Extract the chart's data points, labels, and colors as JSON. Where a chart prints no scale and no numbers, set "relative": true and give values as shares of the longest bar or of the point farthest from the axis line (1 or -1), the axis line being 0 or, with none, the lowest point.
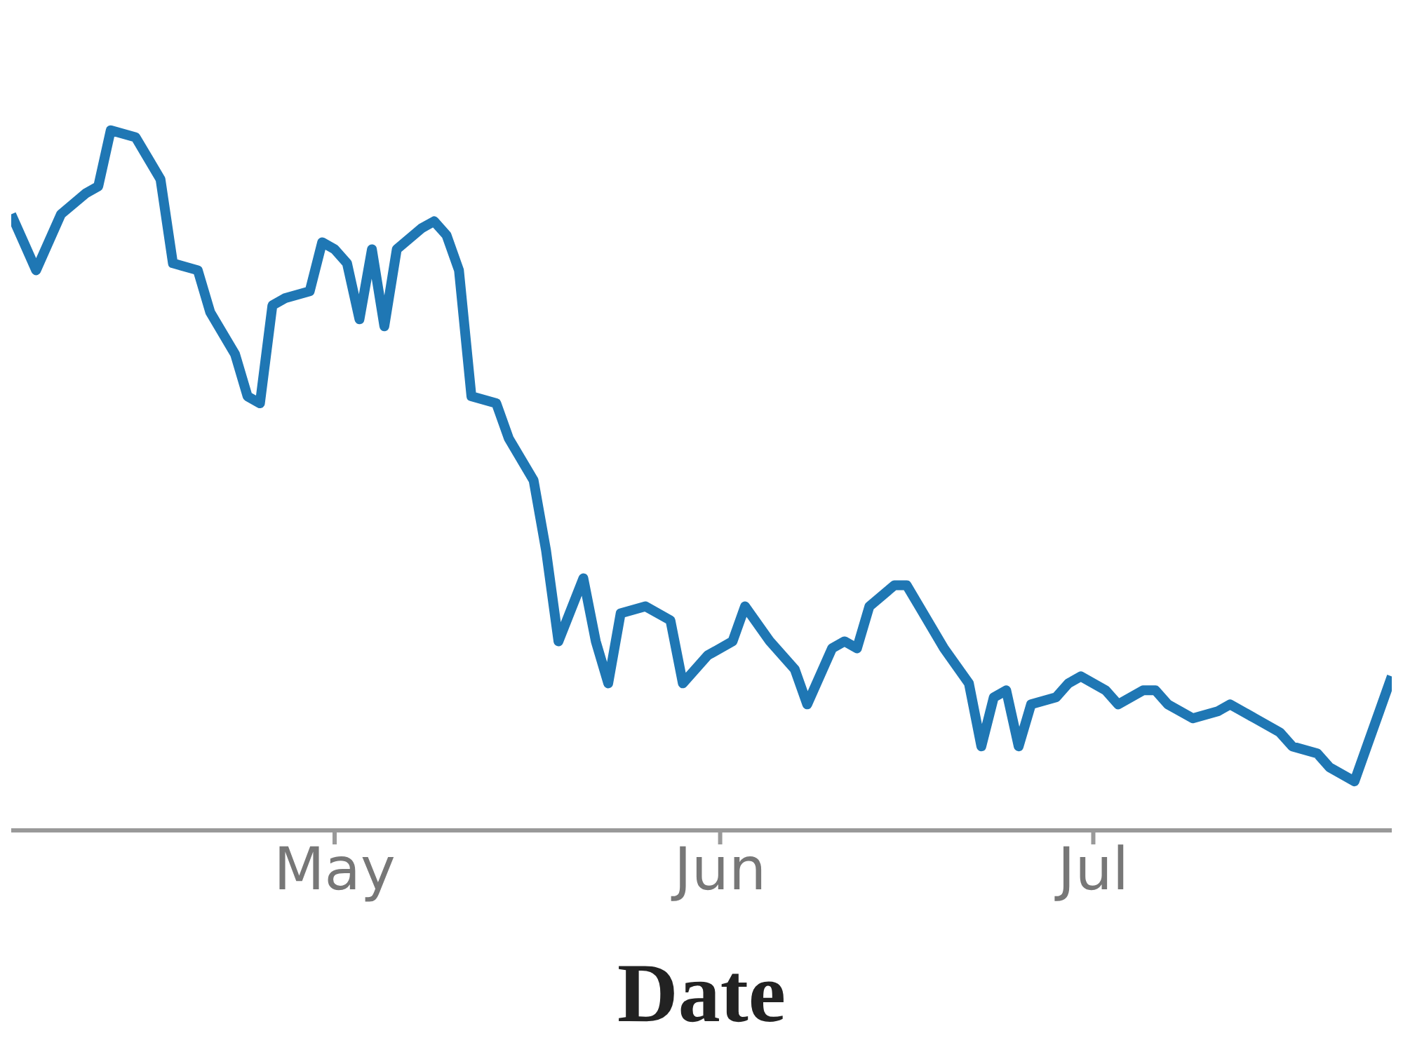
{
  "chart_data": {
    "type": "line",
    "xlabel": "Date",
    "relative": true,
    "marker": "none",
    "line_style": "solid",
    "xlim": [
      "--04-05",
      "--07-25"
    ],
    "xticks": [
      {
        "value": "--05-01",
        "label": "May"
      },
      {
        "value": "--06-01",
        "label": "Jun"
      },
      {
        "value": "--07-01",
        "label": "Jul"
      }
    ],
    "x": [
      "--04-05",
      "--04-06",
      "--04-07",
      "--04-09",
      "--04-11",
      "--04-12",
      "--04-13",
      "--04-15",
      "--04-16",
      "--04-17",
      "--04-18",
      "--04-20",
      "--04-21",
      "--04-23",
      "--04-24",
      "--04-25",
      "--04-26",
      "--04-27",
      "--04-29",
      "--04-30",
      "--05-01",
      "--05-02",
      "--05-03",
      "--05-04",
      "--05-05",
      "--05-06",
      "--05-08",
      "--05-09",
      "--05-10",
      "--05-11",
      "--05-12",
      "--05-14",
      "--05-15",
      "--05-17",
      "--05-18",
      "--05-19",
      "--05-21",
      "--05-22",
      "--05-23",
      "--05-24",
      "--05-26",
      "--05-28",
      "--05-29",
      "--05-31",
      "--06-02",
      "--06-03",
      "--06-05",
      "--06-07",
      "--06-08",
      "--06-10",
      "--06-11",
      "--06-12",
      "--06-13",
      "--06-15",
      "--06-16",
      "--06-17",
      "--06-19",
      "--06-21",
      "--06-22",
      "--06-23",
      "--06-24",
      "--06-25",
      "--06-26",
      "--06-28",
      "--06-29",
      "--06-30",
      "--07-02",
      "--07-03",
      "--07-05",
      "--07-06",
      "--07-07",
      "--07-09",
      "--07-11",
      "--07-12",
      "--07-14",
      "--07-16",
      "--07-17",
      "--07-19",
      "--07-20",
      "--07-22",
      "--07-23",
      "--07-24",
      "--07-25"
    ],
    "series": [
      {
        "color": "#1f77b4",
        "values": [
          0.88,
          0.84,
          0.8,
          0.88,
          0.91,
          0.92,
          1.0,
          0.99,
          0.96,
          0.93,
          0.81,
          0.8,
          0.74,
          0.68,
          0.62,
          0.61,
          0.75,
          0.76,
          0.77,
          0.84,
          0.83,
          0.81,
          0.73,
          0.83,
          0.72,
          0.83,
          0.86,
          0.87,
          0.85,
          0.8,
          0.62,
          0.61,
          0.56,
          0.5,
          0.4,
          0.27,
          0.36,
          0.27,
          0.21,
          0.31,
          0.32,
          0.3,
          0.21,
          0.25,
          0.27,
          0.32,
          0.27,
          0.23,
          0.18,
          0.26,
          0.27,
          0.26,
          0.32,
          0.35,
          0.35,
          0.32,
          0.26,
          0.21,
          0.12,
          0.19,
          0.2,
          0.12,
          0.18,
          0.19,
          0.21,
          0.22,
          0.2,
          0.18,
          0.2,
          0.2,
          0.18,
          0.16,
          0.17,
          0.18,
          0.16,
          0.14,
          0.12,
          0.11,
          0.09,
          0.07,
          0.12,
          0.17,
          0.22
        ]
      }
    ]
  }
}
